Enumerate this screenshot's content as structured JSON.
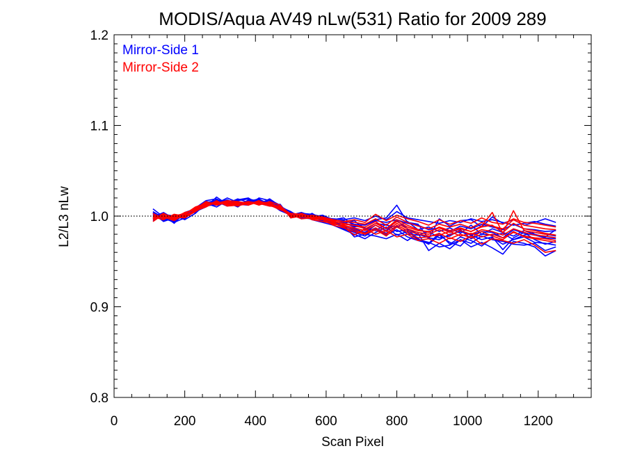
{
  "chart_data": {
    "type": "line",
    "title": "MODIS/Aqua AV49 nLw(531) Ratio for 2009 289",
    "xlabel": "Scan Pixel",
    "ylabel": "L2/L3 nLw",
    "xlim": [
      0,
      1350
    ],
    "ylim": [
      0.8,
      1.2
    ],
    "xticks": [
      0,
      200,
      400,
      600,
      800,
      1000,
      1200
    ],
    "xtick_labels": [
      "0",
      "200",
      "400",
      "600",
      "800",
      "1000",
      "1200"
    ],
    "yticks": [
      0.8,
      0.9,
      1.0,
      1.1,
      1.2
    ],
    "ytick_labels": [
      "0.8",
      "0.9",
      "1.0",
      "1.1",
      "1.2"
    ],
    "reference_line": {
      "y": 1.0,
      "style": "dotted"
    },
    "legend_position": "top-left",
    "series_groups": [
      {
        "name": "Mirror-Side 1",
        "color": "#0000ff"
      },
      {
        "name": "Mirror-Side 2",
        "color": "#ff0000"
      }
    ],
    "x": [
      110,
      140,
      170,
      200,
      230,
      260,
      290,
      320,
      350,
      380,
      410,
      440,
      470,
      500,
      530,
      560,
      590,
      620,
      650,
      680,
      710,
      740,
      770,
      800,
      830,
      860,
      890,
      920,
      950,
      980,
      1010,
      1040,
      1070,
      1100,
      1130,
      1160,
      1190,
      1220,
      1250
    ],
    "series": [
      {
        "group": 0,
        "values": [
          1.005,
          0.998,
          0.993,
          0.998,
          1.006,
          1.013,
          1.018,
          1.016,
          1.012,
          1.017,
          1.018,
          1.014,
          1.01,
          1.001,
          0.998,
          1.0,
          0.997,
          0.992,
          0.988,
          0.986,
          0.982,
          0.99,
          0.984,
          0.995,
          0.986,
          0.98,
          0.976,
          0.974,
          0.98,
          0.983,
          0.979,
          0.983,
          0.982,
          0.976,
          0.985,
          0.981,
          0.979,
          0.976,
          0.975
        ]
      },
      {
        "group": 0,
        "values": [
          1.001,
          0.996,
          0.999,
          1.003,
          1.009,
          1.016,
          1.014,
          1.02,
          1.015,
          1.014,
          1.016,
          1.015,
          1.007,
          1.003,
          1.001,
          0.996,
          0.993,
          0.99,
          0.985,
          0.98,
          0.975,
          0.982,
          0.988,
          0.979,
          0.983,
          0.974,
          0.971,
          0.966,
          0.968,
          0.974,
          0.97,
          0.978,
          0.974,
          0.972,
          0.969,
          0.968,
          0.97,
          0.962,
          0.966
        ]
      },
      {
        "group": 0,
        "values": [
          0.998,
          1.003,
          0.996,
          1.0,
          1.005,
          1.01,
          1.021,
          1.013,
          1.018,
          1.02,
          1.013,
          1.018,
          1.012,
          0.999,
          1.003,
          1.002,
          0.999,
          0.995,
          0.995,
          0.991,
          0.99,
          0.995,
          0.993,
          0.996,
          0.992,
          0.99,
          0.985,
          0.987,
          0.983,
          0.989,
          0.986,
          0.991,
          0.988,
          0.985,
          0.991,
          0.986,
          0.985,
          0.983,
          0.984
        ]
      },
      {
        "group": 0,
        "values": [
          1.008,
          0.999,
          1.001,
          0.996,
          1.003,
          1.014,
          1.01,
          1.017,
          1.014,
          1.016,
          1.019,
          1.012,
          1.011,
          1.004,
          1.0,
          0.999,
          1.001,
          0.996,
          0.998,
          0.989,
          0.987,
          0.984,
          0.991,
          0.983,
          0.985,
          0.975,
          0.969,
          0.979,
          0.971,
          0.967,
          0.979,
          0.974,
          0.977,
          0.963,
          0.976,
          0.982,
          0.974,
          0.969,
          0.972
        ]
      },
      {
        "group": 0,
        "values": [
          0.995,
          1.001,
          0.992,
          1.004,
          1.008,
          1.012,
          1.016,
          1.011,
          1.016,
          1.013,
          1.015,
          1.016,
          1.008,
          1.002,
          0.997,
          1.003,
          0.996,
          0.993,
          0.992,
          0.995,
          0.985,
          0.992,
          0.99,
          0.988,
          0.994,
          0.985,
          0.988,
          0.983,
          0.987,
          0.981,
          0.99,
          0.98,
          0.986,
          0.982,
          0.978,
          0.984,
          0.98,
          0.977,
          0.985
        ]
      },
      {
        "group": 0,
        "values": [
          1.003,
          0.994,
          0.998,
          1.001,
          1.007,
          1.011,
          1.013,
          1.015,
          1.01,
          1.018,
          1.014,
          1.011,
          1.013,
          0.998,
          1.002,
          0.998,
          0.995,
          0.991,
          0.99,
          0.977,
          0.98,
          0.978,
          0.975,
          0.98,
          0.973,
          0.981,
          0.962,
          0.97,
          0.964,
          0.974,
          0.966,
          0.971,
          0.965,
          0.958,
          0.972,
          0.97,
          0.966,
          0.956,
          0.962
        ]
      },
      {
        "group": 0,
        "values": [
          0.999,
          1.004,
          0.997,
          0.999,
          1.006,
          1.015,
          1.017,
          1.014,
          1.019,
          1.015,
          1.017,
          1.013,
          1.009,
          1.0,
          0.999,
          1.001,
          0.998,
          0.997,
          0.996,
          0.998,
          0.995,
          1.0,
          0.996,
          1.005,
          0.998,
          0.996,
          0.994,
          0.992,
          0.995,
          0.993,
          0.997,
          0.994,
          0.996,
          0.993,
          0.99,
          0.992,
          0.994,
          0.991,
          0.989
        ]
      },
      {
        "group": 0,
        "values": [
          1.004,
          0.997,
          0.994,
          1.003,
          1.004,
          1.012,
          1.015,
          1.018,
          1.013,
          1.012,
          1.02,
          1.017,
          1.01,
          1.005,
          0.998,
          0.997,
          1.0,
          0.994,
          0.989,
          0.984,
          0.982,
          0.987,
          0.981,
          0.989,
          0.98,
          0.979,
          0.983,
          0.976,
          0.978,
          0.985,
          0.975,
          0.98,
          0.979,
          0.981,
          0.974,
          0.979,
          0.982,
          0.98,
          0.978
        ]
      },
      {
        "group": 0,
        "values": [
          0.997,
          1.002,
          1.0,
          0.997,
          1.009,
          1.017,
          1.019,
          1.012,
          1.017,
          1.019,
          1.016,
          1.014,
          1.006,
          1.001,
          1.004,
          1.0,
          0.994,
          0.996,
          0.993,
          0.988,
          0.991,
          0.996,
          0.998,
          1.012,
          0.993,
          0.991,
          0.975,
          0.997,
          0.989,
          0.995,
          0.996,
          0.988,
          0.999,
          0.992,
          0.996,
          0.99,
          0.993,
          0.997,
          0.993
        ]
      },
      {
        "group": 0,
        "values": [
          1.002,
          0.995,
          0.997,
          1.002,
          1.005,
          1.013,
          1.012,
          1.016,
          1.011,
          1.017,
          1.013,
          1.019,
          1.011,
          0.999,
          1.001,
          0.998,
          0.997,
          0.99,
          0.986,
          0.982,
          0.978,
          0.986,
          0.979,
          0.985,
          0.977,
          0.973,
          0.97,
          0.981,
          0.969,
          0.977,
          0.973,
          0.967,
          0.976,
          0.969,
          0.974,
          0.977,
          0.971,
          0.97,
          0.968
        ]
      },
      {
        "group": 1,
        "values": [
          0.996,
          1.0,
          0.998,
          1.004,
          1.007,
          1.013,
          1.015,
          1.013,
          1.016,
          1.014,
          1.015,
          1.013,
          1.009,
          1.001,
          0.999,
          0.999,
          0.998,
          0.994,
          0.992,
          0.99,
          0.988,
          0.994,
          0.986,
          0.996,
          0.99,
          0.985,
          0.982,
          0.988,
          0.984,
          0.987,
          0.983,
          0.988,
          0.99,
          0.982,
          0.992,
          0.986,
          0.984,
          0.981,
          0.979
        ]
      },
      {
        "group": 1,
        "values": [
          0.999,
          0.996,
          1.002,
          1.0,
          1.006,
          1.011,
          1.017,
          1.011,
          1.012,
          1.013,
          1.017,
          1.012,
          1.007,
          1.003,
          1.002,
          0.996,
          0.994,
          0.992,
          0.989,
          0.985,
          0.981,
          0.987,
          0.98,
          0.99,
          0.984,
          0.98,
          0.978,
          0.979,
          0.983,
          0.978,
          0.981,
          0.977,
          0.98,
          0.976,
          0.982,
          0.978,
          0.976,
          0.975,
          0.973
        ]
      },
      {
        "group": 1,
        "values": [
          1.001,
          0.999,
          0.995,
          1.002,
          1.01,
          1.014,
          1.013,
          1.016,
          1.014,
          1.016,
          1.012,
          1.016,
          1.012,
          0.998,
          1.0,
          1.001,
          0.999,
          0.996,
          0.994,
          0.993,
          0.991,
          0.997,
          0.99,
          0.999,
          0.993,
          0.989,
          0.986,
          0.991,
          0.988,
          0.991,
          0.987,
          0.993,
          0.989,
          0.986,
          0.996,
          0.99,
          0.988,
          0.986,
          0.985
        ]
      },
      {
        "group": 1,
        "values": [
          0.994,
          1.002,
          0.999,
          0.998,
          1.005,
          1.012,
          1.014,
          1.014,
          1.011,
          1.015,
          1.014,
          1.011,
          1.01,
          1.002,
          0.997,
          0.998,
          0.996,
          0.991,
          0.99,
          0.987,
          0.984,
          0.99,
          0.983,
          0.992,
          0.986,
          0.982,
          0.98,
          0.985,
          0.979,
          0.984,
          0.98,
          0.985,
          0.983,
          0.979,
          0.986,
          0.982,
          0.979,
          0.978,
          0.976
        ]
      },
      {
        "group": 1,
        "values": [
          1.003,
          0.997,
          1.0,
          1.003,
          1.008,
          1.016,
          1.012,
          1.015,
          1.015,
          1.012,
          1.016,
          1.014,
          1.008,
          1.0,
          1.003,
          0.999,
          0.997,
          0.993,
          0.988,
          0.979,
          0.986,
          0.98,
          0.984,
          0.977,
          0.98,
          0.973,
          0.975,
          0.97,
          0.976,
          0.972,
          0.978,
          0.969,
          0.975,
          0.973,
          0.97,
          0.974,
          0.968,
          0.96,
          0.962
        ]
      },
      {
        "group": 1,
        "values": [
          0.998,
          1.001,
          0.996,
          1.001,
          1.006,
          1.01,
          1.016,
          1.012,
          1.013,
          1.016,
          1.014,
          1.012,
          1.011,
          1.002,
          0.999,
          1.0,
          0.998,
          0.995,
          0.994,
          0.996,
          0.993,
          1.002,
          0.995,
          1.001,
          0.997,
          0.994,
          0.99,
          0.996,
          0.991,
          0.995,
          0.992,
          0.998,
          0.993,
          0.991,
          0.997,
          0.993,
          0.992,
          0.99,
          0.988
        ]
      },
      {
        "group": 1,
        "values": [
          1.0,
          0.998,
          1.001,
          0.999,
          1.007,
          1.015,
          1.014,
          1.017,
          1.016,
          1.013,
          1.015,
          1.015,
          1.009,
          1.001,
          1.001,
          0.997,
          0.996,
          0.99,
          0.987,
          0.983,
          0.98,
          0.985,
          0.978,
          0.988,
          0.982,
          0.976,
          0.977,
          0.981,
          0.975,
          0.98,
          0.976,
          0.983,
          0.978,
          0.974,
          0.983,
          0.977,
          0.975,
          0.973,
          0.971
        ]
      },
      {
        "group": 1,
        "values": [
          0.997,
          1.003,
          0.997,
          1.002,
          1.009,
          1.013,
          1.015,
          1.013,
          1.014,
          1.015,
          1.013,
          1.014,
          1.01,
          0.999,
          1.0,
          0.999,
          0.998,
          0.994,
          0.991,
          0.99,
          0.986,
          0.992,
          0.986,
          0.994,
          0.988,
          0.984,
          0.983,
          0.987,
          0.982,
          0.986,
          0.983,
          0.989,
          1.004,
          0.981,
          1.006,
          0.984,
          0.982,
          0.98,
          0.979
        ]
      }
    ]
  }
}
